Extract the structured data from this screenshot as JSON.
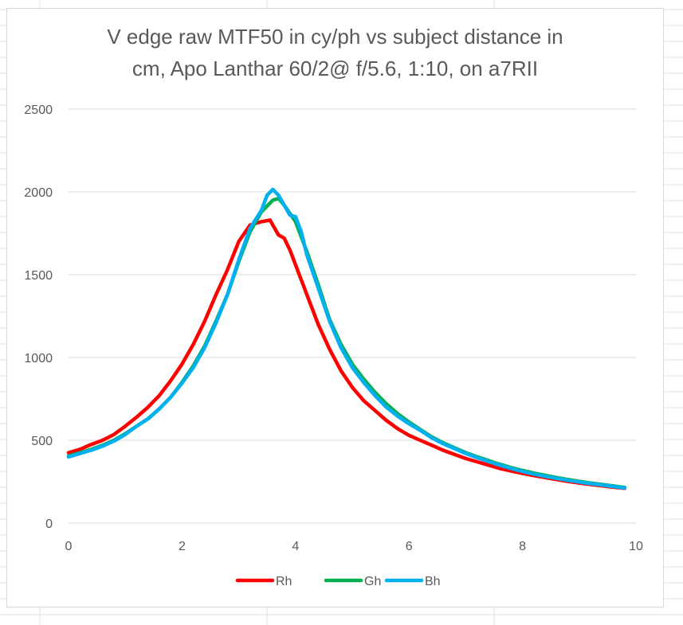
{
  "chart_data": {
    "type": "line",
    "title_lines": [
      "V edge raw MTF50 in cy/ph vs subject distance in",
      "cm, Apo Lanthar 60/2@ f/5.6, 1:10, on a7RII"
    ],
    "xlabel": "",
    "ylabel": "",
    "xlim": [
      0,
      10
    ],
    "ylim": [
      0,
      2500
    ],
    "x_ticks": [
      "0",
      "2",
      "4",
      "6",
      "8",
      "10"
    ],
    "y_ticks": [
      "0",
      "500",
      "1000",
      "1500",
      "2000",
      "2500"
    ],
    "grid": "horizontal",
    "legend_position": "bottom",
    "series": [
      {
        "name": "Rh",
        "color": "#ff0000",
        "points": [
          [
            0,
            425
          ],
          [
            0.2,
            445
          ],
          [
            0.4,
            475
          ],
          [
            0.6,
            500
          ],
          [
            0.8,
            535
          ],
          [
            1.0,
            585
          ],
          [
            1.2,
            640
          ],
          [
            1.4,
            700
          ],
          [
            1.6,
            770
          ],
          [
            1.8,
            860
          ],
          [
            2.0,
            960
          ],
          [
            2.2,
            1080
          ],
          [
            2.4,
            1220
          ],
          [
            2.6,
            1380
          ],
          [
            2.8,
            1530
          ],
          [
            3.0,
            1700
          ],
          [
            3.2,
            1800
          ],
          [
            3.4,
            1820
          ],
          [
            3.55,
            1830
          ],
          [
            3.7,
            1740
          ],
          [
            3.8,
            1720
          ],
          [
            3.9,
            1650
          ],
          [
            4.0,
            1560
          ],
          [
            4.2,
            1380
          ],
          [
            4.4,
            1200
          ],
          [
            4.6,
            1050
          ],
          [
            4.8,
            920
          ],
          [
            5.0,
            820
          ],
          [
            5.2,
            740
          ],
          [
            5.4,
            680
          ],
          [
            5.6,
            620
          ],
          [
            5.8,
            570
          ],
          [
            6.0,
            530
          ],
          [
            6.2,
            500
          ],
          [
            6.4,
            470
          ],
          [
            6.6,
            440
          ],
          [
            6.8,
            415
          ],
          [
            7.0,
            390
          ],
          [
            7.2,
            370
          ],
          [
            7.4,
            350
          ],
          [
            7.6,
            330
          ],
          [
            7.8,
            315
          ],
          [
            8.0,
            300
          ],
          [
            8.2,
            287
          ],
          [
            8.4,
            275
          ],
          [
            8.6,
            263
          ],
          [
            8.8,
            252
          ],
          [
            9.0,
            242
          ],
          [
            9.2,
            233
          ],
          [
            9.4,
            225
          ],
          [
            9.6,
            217
          ],
          [
            9.8,
            210
          ]
        ]
      },
      {
        "name": "Gh",
        "color": "#00b050",
        "points": [
          [
            0,
            405
          ],
          [
            0.2,
            425
          ],
          [
            0.4,
            445
          ],
          [
            0.6,
            470
          ],
          [
            0.8,
            500
          ],
          [
            1.0,
            540
          ],
          [
            1.2,
            585
          ],
          [
            1.4,
            630
          ],
          [
            1.6,
            690
          ],
          [
            1.8,
            760
          ],
          [
            2.0,
            850
          ],
          [
            2.2,
            950
          ],
          [
            2.4,
            1070
          ],
          [
            2.6,
            1220
          ],
          [
            2.8,
            1380
          ],
          [
            3.0,
            1580
          ],
          [
            3.2,
            1760
          ],
          [
            3.4,
            1880
          ],
          [
            3.6,
            1950
          ],
          [
            3.7,
            1960
          ],
          [
            3.8,
            1920
          ],
          [
            4.0,
            1820
          ],
          [
            4.2,
            1640
          ],
          [
            4.4,
            1440
          ],
          [
            4.6,
            1230
          ],
          [
            4.8,
            1080
          ],
          [
            5.0,
            960
          ],
          [
            5.2,
            870
          ],
          [
            5.4,
            790
          ],
          [
            5.6,
            720
          ],
          [
            5.8,
            660
          ],
          [
            6.0,
            610
          ],
          [
            6.2,
            565
          ],
          [
            6.4,
            520
          ],
          [
            6.6,
            485
          ],
          [
            6.8,
            455
          ],
          [
            7.0,
            425
          ],
          [
            7.2,
            400
          ],
          [
            7.4,
            378
          ],
          [
            7.6,
            355
          ],
          [
            7.8,
            335
          ],
          [
            8.0,
            318
          ],
          [
            8.2,
            302
          ],
          [
            8.4,
            288
          ],
          [
            8.6,
            275
          ],
          [
            8.8,
            263
          ],
          [
            9.0,
            252
          ],
          [
            9.2,
            242
          ],
          [
            9.4,
            233
          ],
          [
            9.6,
            224
          ],
          [
            9.8,
            215
          ]
        ]
      },
      {
        "name": "Bh",
        "color": "#00b0f0",
        "points": [
          [
            0,
            400
          ],
          [
            0.2,
            420
          ],
          [
            0.4,
            440
          ],
          [
            0.6,
            465
          ],
          [
            0.8,
            495
          ],
          [
            1.0,
            535
          ],
          [
            1.2,
            585
          ],
          [
            1.4,
            630
          ],
          [
            1.6,
            690
          ],
          [
            1.8,
            760
          ],
          [
            2.0,
            845
          ],
          [
            2.2,
            940
          ],
          [
            2.4,
            1060
          ],
          [
            2.6,
            1210
          ],
          [
            2.8,
            1380
          ],
          [
            3.0,
            1590
          ],
          [
            3.2,
            1780
          ],
          [
            3.4,
            1890
          ],
          [
            3.5,
            1980
          ],
          [
            3.6,
            2015
          ],
          [
            3.7,
            1980
          ],
          [
            3.8,
            1920
          ],
          [
            3.9,
            1860
          ],
          [
            4.0,
            1850
          ],
          [
            4.1,
            1760
          ],
          [
            4.2,
            1620
          ],
          [
            4.4,
            1420
          ],
          [
            4.6,
            1220
          ],
          [
            4.8,
            1060
          ],
          [
            5.0,
            940
          ],
          [
            5.2,
            850
          ],
          [
            5.4,
            770
          ],
          [
            5.6,
            700
          ],
          [
            5.8,
            645
          ],
          [
            6.0,
            600
          ],
          [
            6.2,
            560
          ],
          [
            6.4,
            515
          ],
          [
            6.6,
            480
          ],
          [
            6.8,
            450
          ],
          [
            7.0,
            420
          ],
          [
            7.2,
            395
          ],
          [
            7.4,
            372
          ],
          [
            7.6,
            350
          ],
          [
            7.8,
            330
          ],
          [
            8.0,
            312
          ],
          [
            8.2,
            296
          ],
          [
            8.4,
            282
          ],
          [
            8.6,
            270
          ],
          [
            8.8,
            258
          ],
          [
            9.0,
            248
          ],
          [
            9.2,
            238
          ],
          [
            9.4,
            230
          ],
          [
            9.6,
            221
          ],
          [
            9.8,
            212
          ]
        ]
      }
    ]
  }
}
